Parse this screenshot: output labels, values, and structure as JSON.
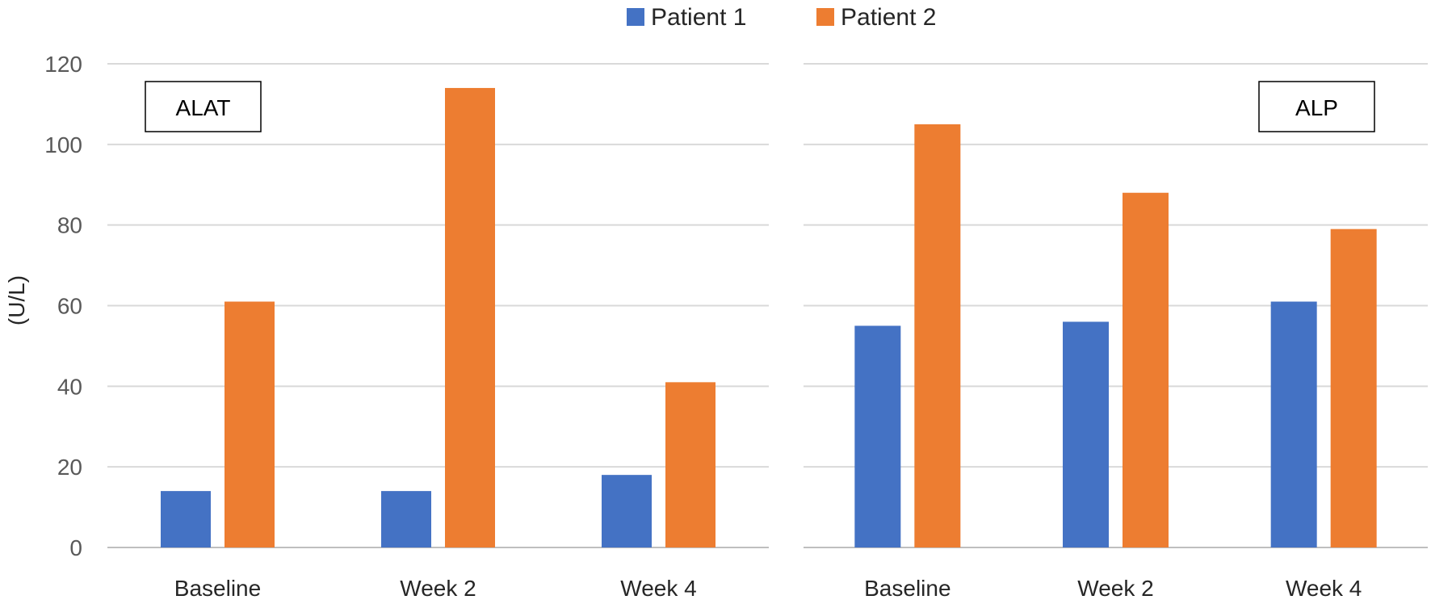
{
  "chart_data": {
    "type": "bar",
    "ylabel": "(U/L)",
    "ylim": [
      0,
      120
    ],
    "yticks": [
      "0",
      "20",
      "40",
      "60",
      "80",
      "100",
      "120"
    ],
    "legend": {
      "position": "top-center",
      "entries": [
        {
          "name": "Patient 1",
          "color": "#4472C4"
        },
        {
          "name": "Patient 2",
          "color": "#ED7D31"
        }
      ]
    },
    "grid": true,
    "panels": [
      {
        "label": "ALAT",
        "categories": [
          "Baseline",
          "Week 2",
          "Week 4"
        ],
        "series": [
          {
            "name": "Patient 1",
            "values": [
              14,
              14,
              18
            ]
          },
          {
            "name": "Patient 2",
            "values": [
              61,
              114,
              41
            ]
          }
        ]
      },
      {
        "label": "ALP",
        "categories": [
          "Baseline",
          "Week 2",
          "Week 4"
        ],
        "series": [
          {
            "name": "Patient 1",
            "values": [
              55,
              56,
              61
            ]
          },
          {
            "name": "Patient 2",
            "values": [
              105,
              88,
              79
            ]
          }
        ]
      }
    ]
  }
}
